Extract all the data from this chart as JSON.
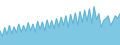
{
  "values": [
    30,
    22,
    35,
    25,
    38,
    26,
    36,
    27,
    40,
    28,
    38,
    29,
    42,
    30,
    40,
    28,
    44,
    32,
    43,
    30,
    46,
    34,
    45,
    33,
    48,
    36,
    50,
    38,
    52,
    35,
    54,
    40,
    56,
    38,
    58,
    42,
    60,
    44,
    62,
    40,
    65,
    46,
    55,
    35,
    45,
    48,
    52,
    38,
    44,
    52,
    48,
    55
  ],
  "line_color": "#5aafd4",
  "fill_color": "#7ec8e3",
  "background_color": "#ffffff",
  "ylim_min": 10,
  "ylim_max": 75
}
